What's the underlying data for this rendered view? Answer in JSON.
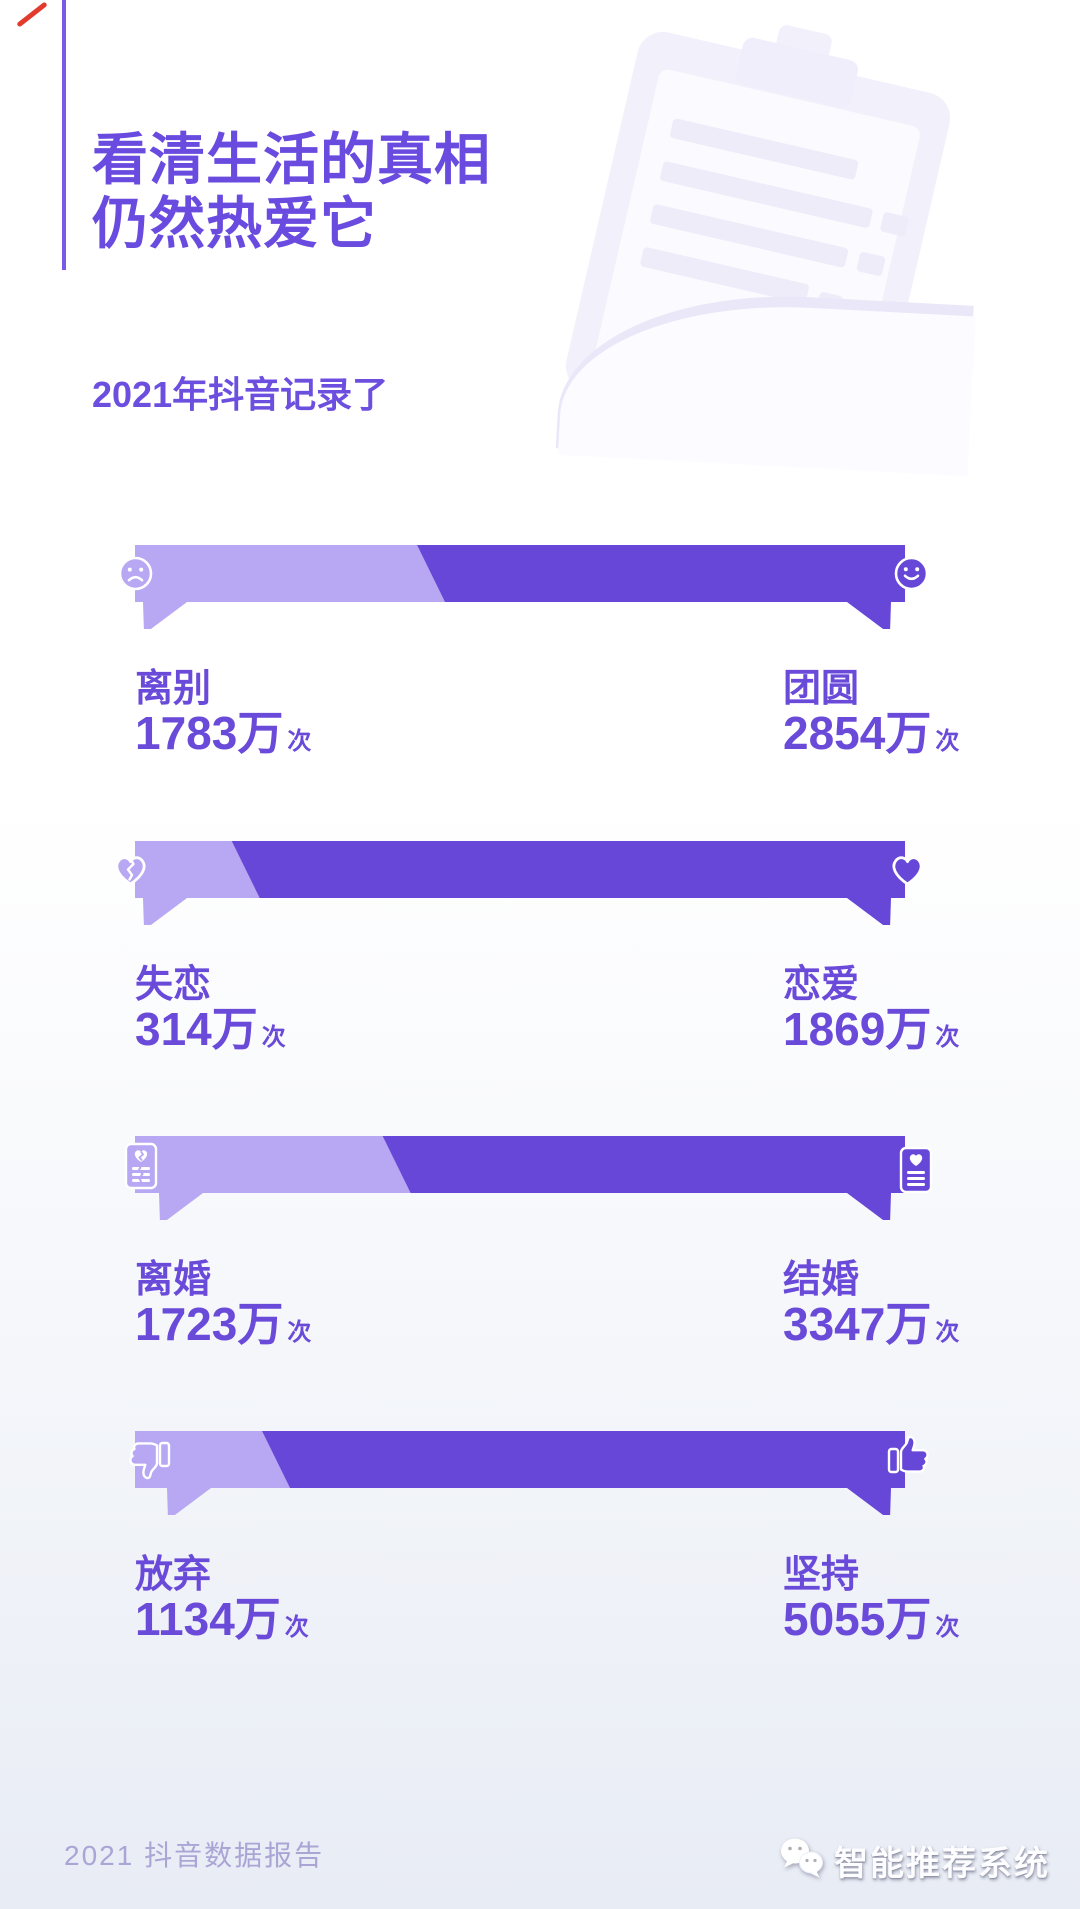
{
  "header": {
    "title_line1": "看清生活的真相",
    "title_line2": "仍然热爱它",
    "subtitle": "2021年抖音记录了",
    "accent_color": "#6a4be0"
  },
  "chart_data": {
    "type": "bar",
    "layout": "paired-horizontal-pictorial-bars",
    "title": "2021年抖音记录了",
    "unit_scale": "万次",
    "colors": {
      "left_segment": "#b8a7f2",
      "right_segment": "#6747d8",
      "label_text": "#6a4ad9"
    },
    "rows": [
      {
        "left": {
          "label": "离别",
          "value_wan": 1783,
          "display": "1783万",
          "unit": "次",
          "icon": "sad-face"
        },
        "right": {
          "label": "团圆",
          "value_wan": 2854,
          "display": "2854万",
          "unit": "次",
          "icon": "smiling-face"
        }
      },
      {
        "left": {
          "label": "失恋",
          "value_wan": 314,
          "display": "314万",
          "unit": "次",
          "icon": "broken-heart"
        },
        "right": {
          "label": "恋爱",
          "value_wan": 1869,
          "display": "1869万",
          "unit": "次",
          "icon": "heart"
        }
      },
      {
        "left": {
          "label": "离婚",
          "value_wan": 1723,
          "display": "1723万",
          "unit": "次",
          "icon": "divorce-certificate"
        },
        "right": {
          "label": "结婚",
          "value_wan": 3347,
          "display": "3347万",
          "unit": "次",
          "icon": "marriage-certificate"
        }
      },
      {
        "left": {
          "label": "放弃",
          "value_wan": 1134,
          "display": "1134万",
          "unit": "次",
          "icon": "thumbs-down"
        },
        "right": {
          "label": "坚持",
          "value_wan": 5055,
          "display": "5055万",
          "unit": "次",
          "icon": "thumbs-up"
        }
      }
    ]
  },
  "footer": {
    "report_label": "2021 抖音数据报告",
    "watermark_text": "智能推荐系统"
  }
}
